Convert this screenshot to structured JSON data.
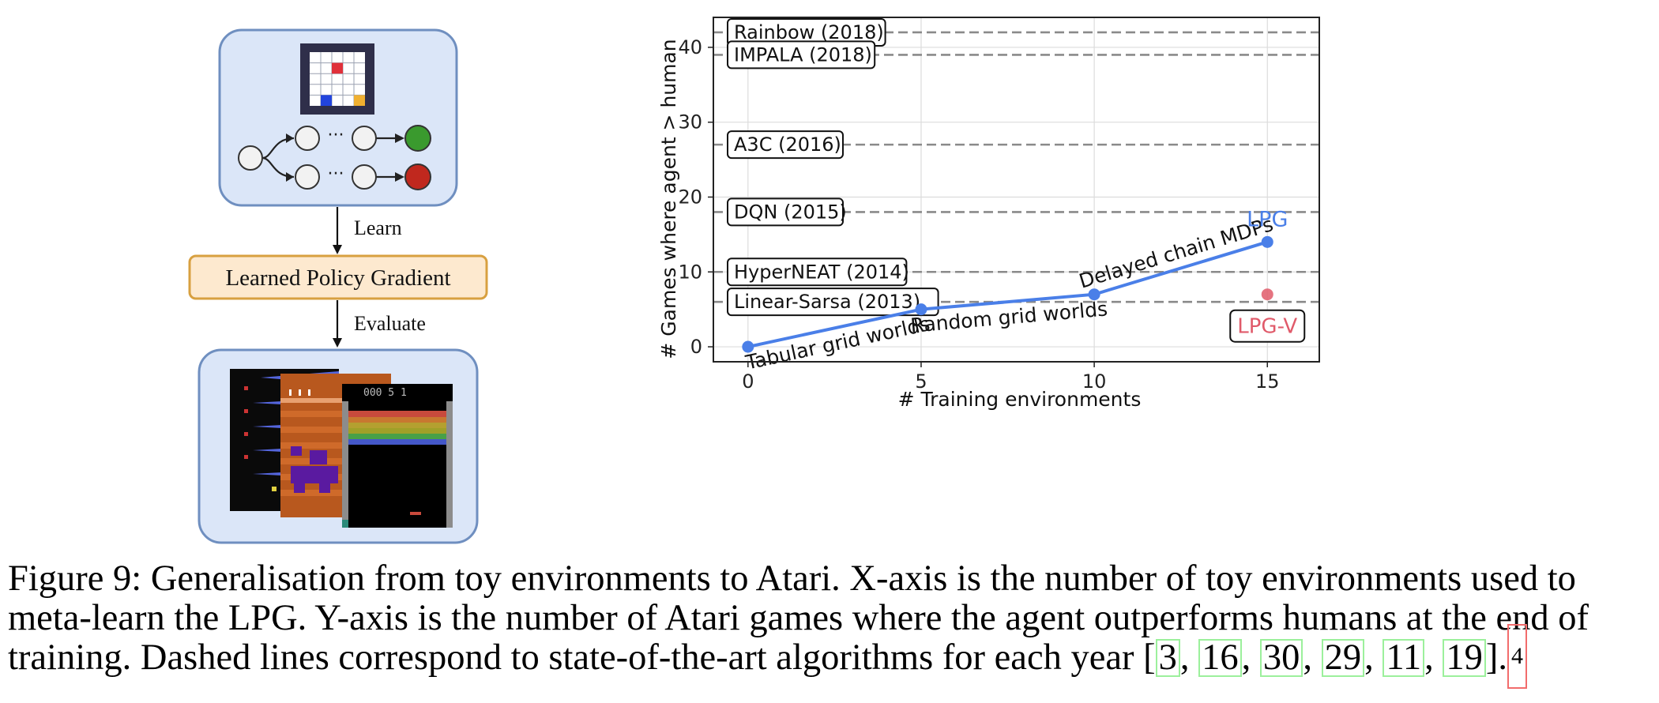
{
  "diagram": {
    "learn_label": "Learn",
    "lpg_box_label": "Learned Policy Gradient",
    "evaluate_label": "Evaluate",
    "atari_score": "000 5 1"
  },
  "chart_data": {
    "type": "line",
    "xlabel": "# Training environments",
    "ylabel": "# Games where agent > human",
    "xlim": [
      -1,
      16.5
    ],
    "ylim": [
      -2,
      44
    ],
    "xticks": [
      0,
      5,
      10,
      15
    ],
    "yticks": [
      0,
      10,
      20,
      30,
      40
    ],
    "grid": true,
    "series": [
      {
        "name": "LPG",
        "x": [
          0,
          5,
          10,
          15
        ],
        "values": [
          0,
          5,
          7,
          14
        ],
        "color": "#4a7fe8",
        "segment_labels": [
          "Tabular grid worlds",
          "Random grid worlds",
          "Delayed chain MDPs"
        ]
      },
      {
        "name": "LPG-V",
        "x": [
          15
        ],
        "values": [
          7
        ],
        "color": "#e05a6a"
      }
    ],
    "baselines": [
      {
        "label": "Rainbow (2018)",
        "value": 42
      },
      {
        "label": "IMPALA (2018)",
        "value": 39
      },
      {
        "label": "A3C (2016)",
        "value": 27
      },
      {
        "label": "DQN (2015)",
        "value": 18
      },
      {
        "label": "HyperNEAT (2014)",
        "value": 10
      },
      {
        "label": "Linear-Sarsa (2013)",
        "value": 6
      }
    ]
  },
  "caption": {
    "line1": "Figure 9: Generalisation from toy environments to Atari. X-axis is the number of toy environments used to",
    "line2": "meta-learn the LPG. Y-axis is the number of Atari games where the agent outperforms humans at the end of",
    "line3_prefix": "training. Dashed lines correspond to state-of-the-art algorithms for each year [",
    "citations": [
      "3",
      "16",
      "30",
      "29",
      "11",
      "19"
    ],
    "line3_suffix": "].",
    "footnote": "4"
  }
}
